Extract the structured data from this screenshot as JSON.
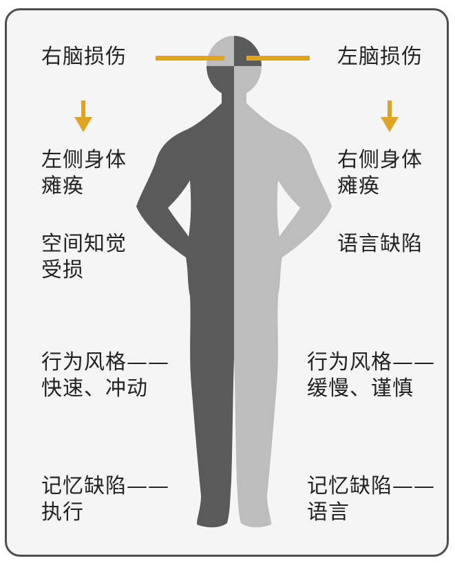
{
  "colors": {
    "frame_border": "#4d4d4d",
    "frame_fill": "#f5f5f5",
    "accent": "#e0a520",
    "body_dark": "#5a5a5a",
    "body_light": "#bdbdbd",
    "text": "#222222"
  },
  "left": {
    "title": "右脑损伤",
    "effect_1": [
      "左侧身体",
      "瘫痪"
    ],
    "effect_2": [
      "空间知觉",
      "受损"
    ],
    "effect_3": [
      "行为风格——",
      "快速、冲动"
    ],
    "effect_4": [
      "记忆缺陷——",
      "执行"
    ]
  },
  "right": {
    "title": "左脑损伤",
    "effect_1": [
      "右侧身体",
      "瘫痪"
    ],
    "effect_2": [
      "语言缺陷"
    ],
    "effect_3": [
      "行为风格——",
      "缓慢、谨慎"
    ],
    "effect_4": [
      "记忆缺陷——",
      "语言"
    ]
  }
}
